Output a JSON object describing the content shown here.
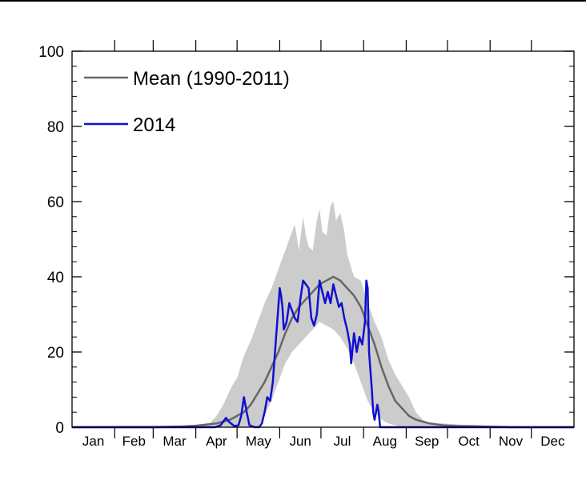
{
  "chart_data": {
    "type": "line",
    "title": "",
    "xlabel": "",
    "ylabel": "",
    "ylim": [
      0,
      100
    ],
    "xlim": [
      0,
      365
    ],
    "y_ticks": [
      "0",
      "20",
      "40",
      "60",
      "80",
      "100"
    ],
    "months": [
      "Jan",
      "Feb",
      "Mar",
      "Apr",
      "May",
      "Jun",
      "Jul",
      "Aug",
      "Sep",
      "Oct",
      "Nov",
      "Dec"
    ],
    "x_unit": "day of year",
    "legend_position": "top-left",
    "series": [
      {
        "name": "Mean (1990-2011)",
        "color": "#666666",
        "points": [
          [
            0,
            0
          ],
          [
            60,
            0
          ],
          [
            80,
            0.2
          ],
          [
            90,
            0.4
          ],
          [
            100,
            0.8
          ],
          [
            105,
            1
          ],
          [
            110,
            1.5
          ],
          [
            115,
            2
          ],
          [
            120,
            3
          ],
          [
            125,
            4
          ],
          [
            130,
            6
          ],
          [
            135,
            9
          ],
          [
            140,
            12
          ],
          [
            145,
            16
          ],
          [
            150,
            20
          ],
          [
            155,
            25
          ],
          [
            160,
            29
          ],
          [
            165,
            32
          ],
          [
            170,
            34
          ],
          [
            175,
            36
          ],
          [
            180,
            38
          ],
          [
            185,
            39
          ],
          [
            190,
            40
          ],
          [
            195,
            39
          ],
          [
            200,
            37
          ],
          [
            205,
            35
          ],
          [
            210,
            32
          ],
          [
            215,
            27
          ],
          [
            220,
            22
          ],
          [
            225,
            16
          ],
          [
            230,
            11
          ],
          [
            235,
            7
          ],
          [
            240,
            5
          ],
          [
            245,
            3
          ],
          [
            250,
            2
          ],
          [
            255,
            1.5
          ],
          [
            260,
            1
          ],
          [
            270,
            0.5
          ],
          [
            280,
            0.3
          ],
          [
            290,
            0.3
          ],
          [
            300,
            0.2
          ],
          [
            320,
            0
          ],
          [
            365,
            0
          ]
        ]
      },
      {
        "name": "2014",
        "color": "#1010d0",
        "points": [
          [
            0,
            0
          ],
          [
            104,
            0
          ],
          [
            108,
            0.5
          ],
          [
            112,
            2.5
          ],
          [
            114,
            1.5
          ],
          [
            118,
            0.3
          ],
          [
            121,
            0.5
          ],
          [
            123,
            3
          ],
          [
            125,
            8
          ],
          [
            127,
            4
          ],
          [
            129,
            0.5
          ],
          [
            133,
            0
          ],
          [
            136,
            0
          ],
          [
            138,
            1
          ],
          [
            140,
            4
          ],
          [
            142,
            8
          ],
          [
            144,
            7
          ],
          [
            146,
            12
          ],
          [
            148,
            22
          ],
          [
            150,
            32
          ],
          [
            151,
            37
          ],
          [
            152,
            35
          ],
          [
            153,
            32
          ],
          [
            154,
            26
          ],
          [
            156,
            28
          ],
          [
            158,
            33
          ],
          [
            160,
            31
          ],
          [
            162,
            29
          ],
          [
            164,
            28
          ],
          [
            166,
            34
          ],
          [
            168,
            39
          ],
          [
            170,
            38
          ],
          [
            172,
            37
          ],
          [
            174,
            29
          ],
          [
            176,
            27
          ],
          [
            178,
            30
          ],
          [
            180,
            39
          ],
          [
            182,
            36
          ],
          [
            184,
            33
          ],
          [
            186,
            36
          ],
          [
            188,
            33
          ],
          [
            190,
            38
          ],
          [
            192,
            35
          ],
          [
            194,
            32
          ],
          [
            196,
            33
          ],
          [
            198,
            29
          ],
          [
            200,
            26
          ],
          [
            202,
            22
          ],
          [
            203,
            17
          ],
          [
            205,
            25
          ],
          [
            207,
            20
          ],
          [
            209,
            24
          ],
          [
            211,
            22
          ],
          [
            213,
            28
          ],
          [
            214,
            39
          ],
          [
            215,
            37
          ],
          [
            216,
            20
          ],
          [
            218,
            10
          ],
          [
            219,
            4
          ],
          [
            220,
            2
          ],
          [
            222,
            6
          ],
          [
            223,
            4
          ],
          [
            224,
            0
          ],
          [
            365,
            0
          ]
        ]
      }
    ],
    "range_band": {
      "color": "#cccccc",
      "upper": [
        [
          0,
          0.3
        ],
        [
          90,
          0.5
        ],
        [
          100,
          1
        ],
        [
          105,
          3
        ],
        [
          110,
          6
        ],
        [
          115,
          10
        ],
        [
          118,
          12
        ],
        [
          120,
          13
        ],
        [
          125,
          19
        ],
        [
          130,
          23
        ],
        [
          135,
          28
        ],
        [
          140,
          33
        ],
        [
          145,
          37
        ],
        [
          150,
          42
        ],
        [
          155,
          47
        ],
        [
          160,
          52
        ],
        [
          162,
          54
        ],
        [
          165,
          47
        ],
        [
          168,
          56
        ],
        [
          170,
          51
        ],
        [
          172,
          48
        ],
        [
          175,
          47
        ],
        [
          178,
          55
        ],
        [
          180,
          58
        ],
        [
          182,
          52
        ],
        [
          185,
          51
        ],
        [
          188,
          59
        ],
        [
          190,
          60
        ],
        [
          192,
          55
        ],
        [
          195,
          57
        ],
        [
          198,
          52
        ],
        [
          200,
          46
        ],
        [
          205,
          40
        ],
        [
          210,
          39
        ],
        [
          215,
          33
        ],
        [
          220,
          28
        ],
        [
          225,
          24
        ],
        [
          230,
          18
        ],
        [
          235,
          14
        ],
        [
          240,
          11
        ],
        [
          245,
          8
        ],
        [
          250,
          4
        ],
        [
          255,
          2
        ],
        [
          260,
          1
        ],
        [
          270,
          1
        ],
        [
          290,
          0.5
        ],
        [
          365,
          0
        ]
      ],
      "lower": [
        [
          0,
          0
        ],
        [
          135,
          0
        ],
        [
          140,
          3
        ],
        [
          145,
          7
        ],
        [
          150,
          12
        ],
        [
          155,
          17
        ],
        [
          160,
          20
        ],
        [
          165,
          22
        ],
        [
          170,
          24
        ],
        [
          175,
          26
        ],
        [
          180,
          28
        ],
        [
          185,
          27
        ],
        [
          190,
          26
        ],
        [
          195,
          24
        ],
        [
          200,
          21
        ],
        [
          205,
          17
        ],
        [
          210,
          12
        ],
        [
          215,
          7
        ],
        [
          220,
          4
        ],
        [
          225,
          2
        ],
        [
          230,
          1
        ],
        [
          240,
          0
        ],
        [
          365,
          0
        ]
      ]
    }
  }
}
